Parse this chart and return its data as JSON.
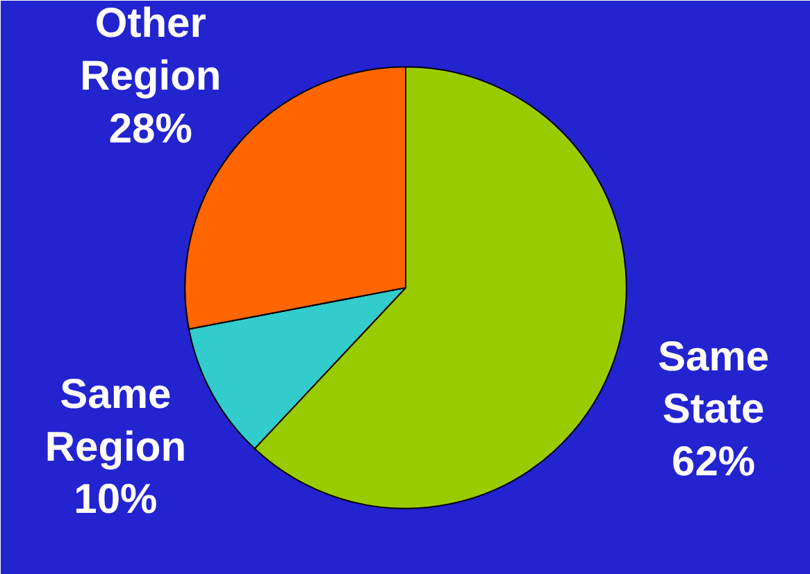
{
  "chart_data": {
    "type": "pie",
    "categories": [
      "Same State",
      "Same Region",
      "Other Region"
    ],
    "values": [
      62,
      10,
      28
    ],
    "value_labels": [
      "62%",
      "10%",
      "28%"
    ],
    "colors": [
      "#99cc00",
      "#33cccc",
      "#ff6600"
    ]
  }
}
